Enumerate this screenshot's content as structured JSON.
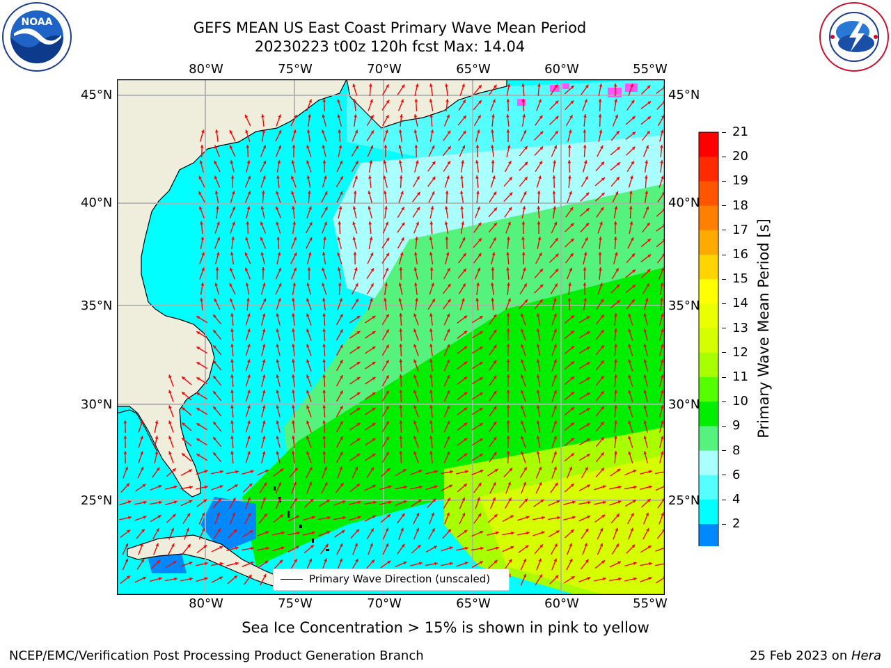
{
  "header": {
    "title_line1": "GEFS MEAN US East Coast Primary Wave Mean Period",
    "title_line2": "20230223 t00z 120h fcst   Max: 14.04"
  },
  "logos": {
    "noaa_text": "NOAA",
    "noaa_ring": "NATIONAL OCEANIC AND ATMOSPHERIC ADMINISTRATION",
    "noaa_ring_bottom": "U.S. DEPARTMENT OF COMMERCE",
    "nws_ring": "NATIONAL WEATHER SERVICE"
  },
  "map": {
    "lon_labels": [
      "80°W",
      "75°W",
      "70°W",
      "65°W",
      "60°W",
      "55°W"
    ],
    "lat_labels": [
      "45°N",
      "40°N",
      "35°N",
      "30°N",
      "25°N"
    ],
    "legend_text": "Primary Wave Direction (unscaled)",
    "arrow_color": "#ff0000",
    "land_color": "#efeedc"
  },
  "colorbar": {
    "label": "Primary Wave Mean Period [s]",
    "ticks": [
      "21",
      "20",
      "19",
      "18",
      "17",
      "16",
      "15",
      "14",
      "13",
      "12",
      "11",
      "10",
      "9",
      "8",
      "6",
      "4",
      "2"
    ],
    "colors": [
      "#ff0000",
      "#ff2a00",
      "#ff5500",
      "#ff8000",
      "#ffaa00",
      "#ffd400",
      "#ffff00",
      "#eaff00",
      "#d5ff00",
      "#a8ff00",
      "#55ff00",
      "#00ee00",
      "#55f27d",
      "#aaffff",
      "#55ffff",
      "#00ffff",
      "#0088ff",
      "#0000ff"
    ]
  },
  "footer": {
    "note": "Sea Ice Concentration > 15% is shown in pink to yellow",
    "left": "NCEP/EMC/Verification Post Processing Product Generation Branch",
    "right_date": "25 Feb 2023 on ",
    "right_host": "Hera"
  }
}
